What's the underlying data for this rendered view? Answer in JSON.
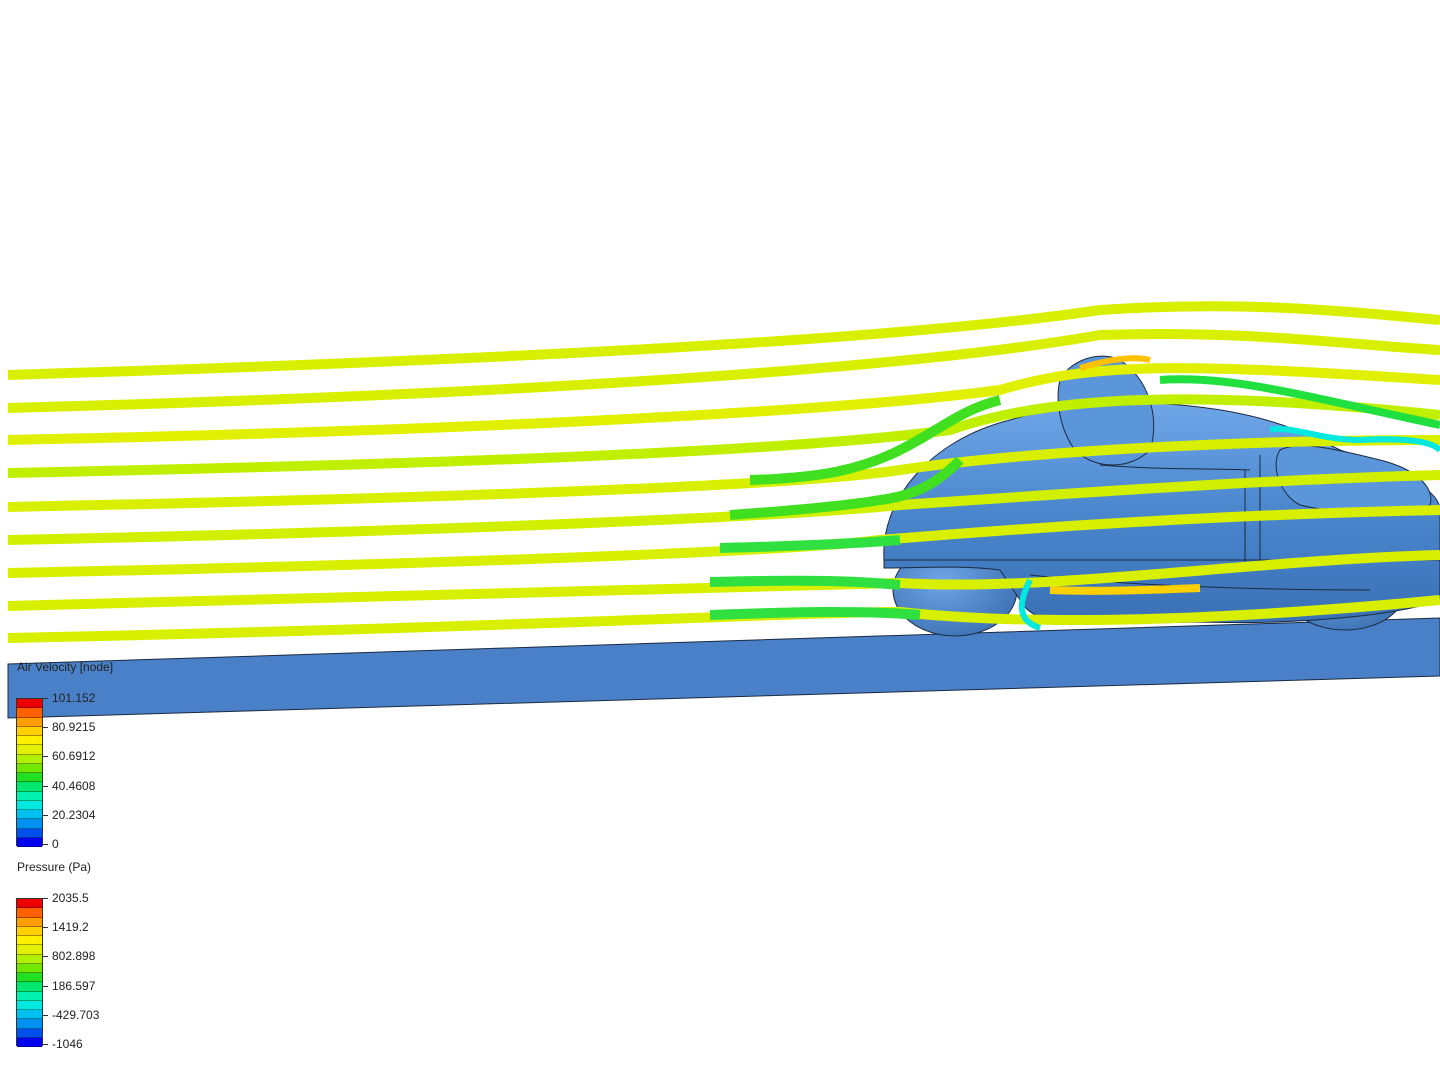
{
  "scene": {
    "body_color": "#4a86cc",
    "ground_color": "#4a80c8"
  },
  "legends": [
    {
      "title": "Air Velocity [node]",
      "labels": [
        "101.152",
        "80.9215",
        "60.6912",
        "40.4608",
        "20.2304",
        "0"
      ]
    },
    {
      "title": "Pressure (Pa)",
      "labels": [
        "2035.5",
        "1419.2",
        "802.898",
        "186.597",
        "-429.703",
        "-1046"
      ]
    }
  ],
  "colormap": [
    "#0000ee",
    "#0050ee",
    "#0090f0",
    "#00c0f0",
    "#00e8e0",
    "#00f0b0",
    "#00e870",
    "#20e020",
    "#70e800",
    "#b0f000",
    "#e0f000",
    "#fff000",
    "#ffd000",
    "#ffa000",
    "#ff6000",
    "#ee0000"
  ]
}
